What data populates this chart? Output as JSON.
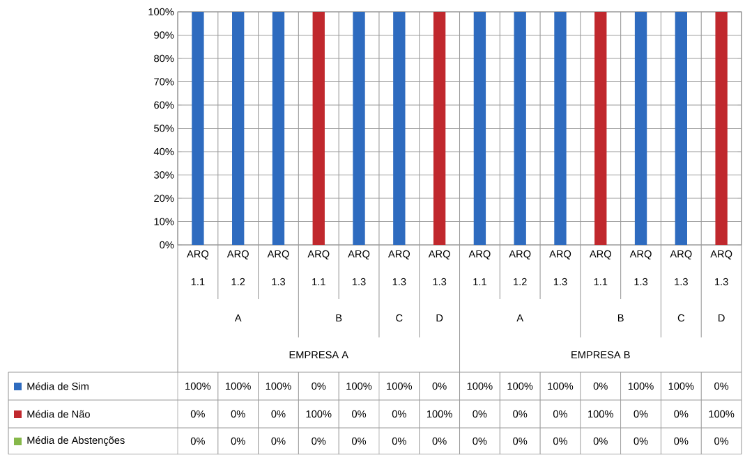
{
  "chart_data": {
    "type": "bar",
    "stacked": true,
    "grid": true,
    "legend": "bottom",
    "categories": [
      "ARQ 1.1",
      "ARQ 1.2",
      "ARQ 1.3",
      "ARQ 1.1",
      "ARQ 1.3",
      "ARQ 1.3",
      "ARQ 1.3",
      "ARQ 1.1",
      "ARQ 1.2",
      "ARQ 1.3",
      "ARQ 1.1",
      "ARQ 1.3",
      "ARQ 1.3",
      "ARQ 1.3"
    ],
    "series": [
      {
        "name": "Média de Sim",
        "color": "#2e6bbf",
        "values": [
          100,
          100,
          100,
          0,
          100,
          100,
          0,
          100,
          100,
          100,
          0,
          100,
          100,
          0
        ],
        "value_labels": [
          "100%",
          "100%",
          "100%",
          "0%",
          "100%",
          "100%",
          "0%",
          "100%",
          "100%",
          "100%",
          "0%",
          "100%",
          "100%",
          "0%"
        ]
      },
      {
        "name": "Média de Não",
        "color": "#c0282d",
        "values": [
          0,
          0,
          0,
          100,
          0,
          0,
          100,
          0,
          0,
          0,
          100,
          0,
          0,
          100
        ],
        "value_labels": [
          "0%",
          "0%",
          "0%",
          "100%",
          "0%",
          "0%",
          "100%",
          "0%",
          "0%",
          "0%",
          "100%",
          "0%",
          "0%",
          "100%"
        ]
      },
      {
        "name": "Média de Abstenções",
        "color": "#86b84a",
        "values": [
          0,
          0,
          0,
          0,
          0,
          0,
          0,
          0,
          0,
          0,
          0,
          0,
          0,
          0
        ],
        "value_labels": [
          "0%",
          "0%",
          "0%",
          "0%",
          "0%",
          "0%",
          "0%",
          "0%",
          "0%",
          "0%",
          "0%",
          "0%",
          "0%",
          "0%"
        ]
      }
    ],
    "ylim": [
      0,
      100
    ],
    "yticks": [
      {
        "value": 0,
        "label": "0%"
      },
      {
        "value": 10,
        "label": "10%"
      },
      {
        "value": 20,
        "label": "20%"
      },
      {
        "value": 30,
        "label": "30%"
      },
      {
        "value": 40,
        "label": "40%"
      },
      {
        "value": 50,
        "label": "50%"
      },
      {
        "value": 60,
        "label": "60%"
      },
      {
        "value": 70,
        "label": "70%"
      },
      {
        "value": 80,
        "label": "80%"
      },
      {
        "value": 90,
        "label": "90%"
      },
      {
        "value": 100,
        "label": "100%"
      }
    ],
    "annotations": [
      "A",
      "B",
      "C",
      "D",
      "A",
      "B",
      "C",
      "D",
      "EMPRESA A",
      "EMPRESA B"
    ]
  }
}
